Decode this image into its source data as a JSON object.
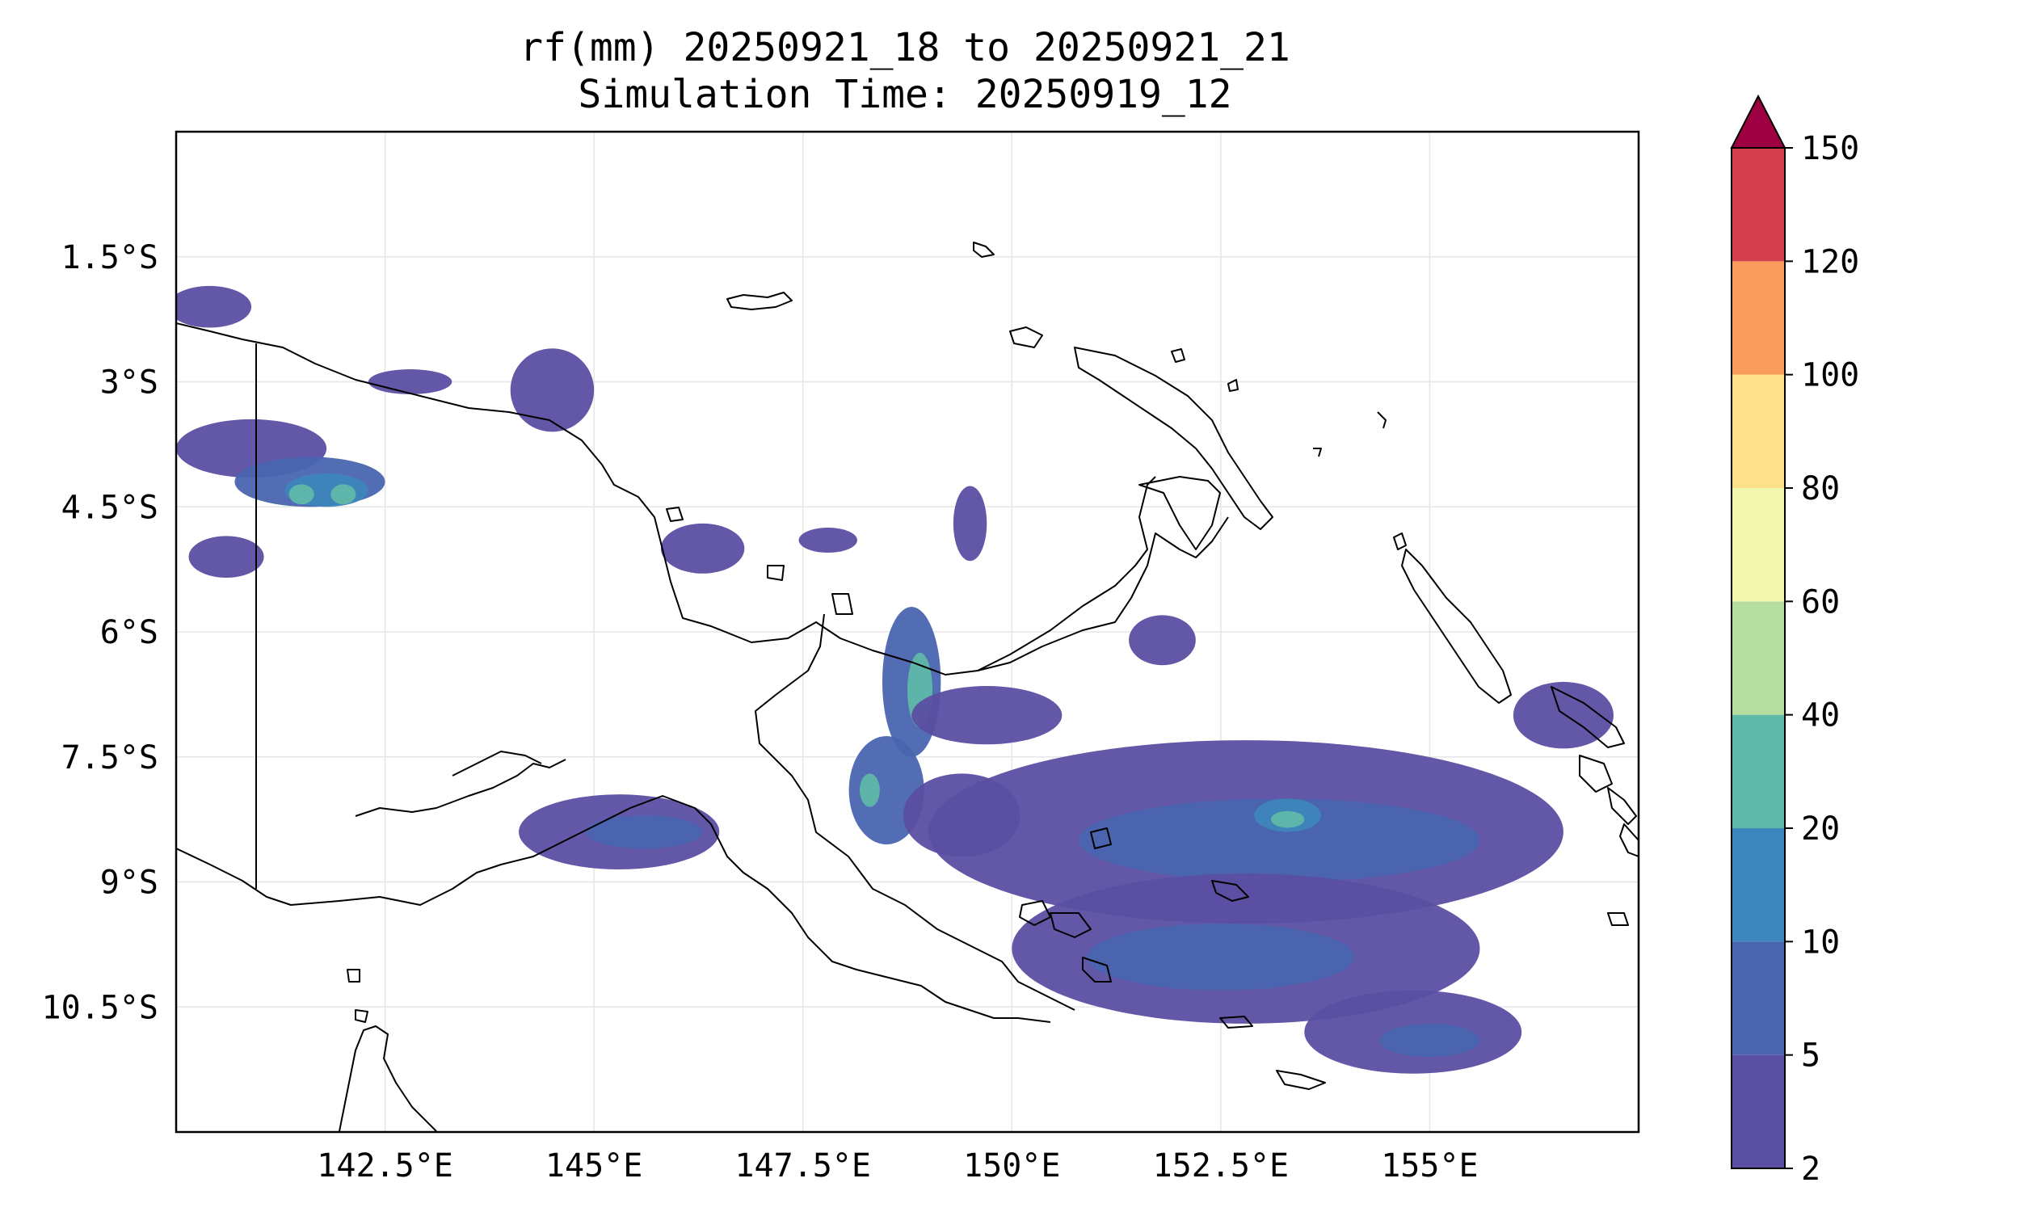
{
  "title": {
    "line1": "rf(mm) 20250921_18 to 20250921_21",
    "line2": "Simulation Time: 20250919_12"
  },
  "map": {
    "projection": "PlateCarree",
    "lon_range": [
      140.0,
      157.5
    ],
    "lat_range": [
      -12.0,
      -0.0
    ],
    "lat_ticks": [
      {
        "value": -1.5,
        "label": "1.5°S"
      },
      {
        "value": -3.0,
        "label": "3°S"
      },
      {
        "value": -4.5,
        "label": "4.5°S"
      },
      {
        "value": -6.0,
        "label": "6°S"
      },
      {
        "value": -7.5,
        "label": "7.5°S"
      },
      {
        "value": -9.0,
        "label": "9°S"
      },
      {
        "value": -10.5,
        "label": "10.5°S"
      }
    ],
    "lon_ticks": [
      {
        "value": 142.5,
        "label": "142.5°E"
      },
      {
        "value": 145.0,
        "label": "145°E"
      },
      {
        "value": 147.5,
        "label": "147.5°E"
      },
      {
        "value": 150.0,
        "label": "150°E"
      },
      {
        "value": 152.5,
        "label": "152.5°E"
      },
      {
        "value": 155.0,
        "label": "155°E"
      }
    ],
    "gridlines": true,
    "land_outline_color": "#000000"
  },
  "colorbar": {
    "levels": [
      2,
      5,
      10,
      20,
      40,
      60,
      80,
      100,
      120,
      150
    ],
    "tick_labels": [
      "2",
      "5",
      "10",
      "20",
      "40",
      "60",
      "80",
      "100",
      "120",
      "150"
    ],
    "colors": [
      "#5a4fa2",
      "#4a65b0",
      "#3d86bb",
      "#5fb8a8",
      "#b5dea0",
      "#f2f7ae",
      "#fde08a",
      "#f99b5a",
      "#d53e4f"
    ],
    "extend_color": "#9e0142",
    "extend": "max"
  },
  "chart_data": {
    "type": "heatmap",
    "variable": "rf(mm)",
    "regions": [
      {
        "lon": 140.9,
        "lat": -3.8,
        "rx": 0.9,
        "ry": 0.35,
        "level": 0
      },
      {
        "lon": 141.6,
        "lat": -4.2,
        "rx": 0.9,
        "ry": 0.3,
        "level": 1
      },
      {
        "lon": 141.8,
        "lat": -4.3,
        "rx": 0.5,
        "ry": 0.2,
        "level": 2
      },
      {
        "lon": 141.5,
        "lat": -4.35,
        "rx": 0.15,
        "ry": 0.12,
        "level": 3
      },
      {
        "lon": 142.0,
        "lat": -4.35,
        "rx": 0.15,
        "ry": 0.12,
        "level": 3
      },
      {
        "lon": 140.4,
        "lat": -2.1,
        "rx": 0.5,
        "ry": 0.25,
        "level": 0
      },
      {
        "lon": 140.6,
        "lat": -5.1,
        "rx": 0.45,
        "ry": 0.25,
        "level": 0
      },
      {
        "lon": 144.5,
        "lat": -3.1,
        "rx": 0.5,
        "ry": 0.5,
        "level": 0
      },
      {
        "lon": 142.8,
        "lat": -3.0,
        "rx": 0.5,
        "ry": 0.15,
        "level": 0
      },
      {
        "lon": 146.3,
        "lat": -5.0,
        "rx": 0.5,
        "ry": 0.3,
        "level": 0
      },
      {
        "lon": 147.8,
        "lat": -4.9,
        "rx": 0.35,
        "ry": 0.15,
        "level": 0
      },
      {
        "lon": 149.5,
        "lat": -4.7,
        "rx": 0.2,
        "ry": 0.45,
        "level": 0
      },
      {
        "lon": 148.8,
        "lat": -6.6,
        "rx": 0.35,
        "ry": 0.9,
        "level": 1
      },
      {
        "lon": 148.9,
        "lat": -6.7,
        "rx": 0.15,
        "ry": 0.45,
        "level": 3
      },
      {
        "lon": 149.7,
        "lat": -7.0,
        "rx": 0.9,
        "ry": 0.35,
        "level": 0
      },
      {
        "lon": 148.5,
        "lat": -7.9,
        "rx": 0.45,
        "ry": 0.65,
        "level": 1
      },
      {
        "lon": 148.3,
        "lat": -7.9,
        "rx": 0.12,
        "ry": 0.2,
        "level": 3
      },
      {
        "lon": 149.4,
        "lat": -8.2,
        "rx": 0.7,
        "ry": 0.5,
        "level": 0
      },
      {
        "lon": 145.3,
        "lat": -8.4,
        "rx": 1.2,
        "ry": 0.45,
        "level": 0
      },
      {
        "lon": 145.6,
        "lat": -8.4,
        "rx": 0.7,
        "ry": 0.2,
        "level": 1
      },
      {
        "lon": 152.8,
        "lat": -8.4,
        "rx": 3.8,
        "ry": 1.1,
        "level": 0
      },
      {
        "lon": 153.2,
        "lat": -8.5,
        "rx": 2.4,
        "ry": 0.5,
        "level": 1
      },
      {
        "lon": 153.3,
        "lat": -8.2,
        "rx": 0.4,
        "ry": 0.2,
        "level": 2
      },
      {
        "lon": 153.3,
        "lat": -8.25,
        "rx": 0.2,
        "ry": 0.1,
        "level": 3
      },
      {
        "lon": 152.8,
        "lat": -9.8,
        "rx": 2.8,
        "ry": 0.9,
        "level": 0
      },
      {
        "lon": 152.5,
        "lat": -9.9,
        "rx": 1.6,
        "ry": 0.4,
        "level": 1
      },
      {
        "lon": 154.8,
        "lat": -10.8,
        "rx": 1.3,
        "ry": 0.5,
        "level": 0
      },
      {
        "lon": 155.0,
        "lat": -10.9,
        "rx": 0.6,
        "ry": 0.2,
        "level": 1
      },
      {
        "lon": 156.6,
        "lat": -7.0,
        "rx": 0.6,
        "ry": 0.4,
        "level": 0
      },
      {
        "lon": 151.8,
        "lat": -6.1,
        "rx": 0.4,
        "ry": 0.3,
        "level": 0
      }
    ]
  }
}
